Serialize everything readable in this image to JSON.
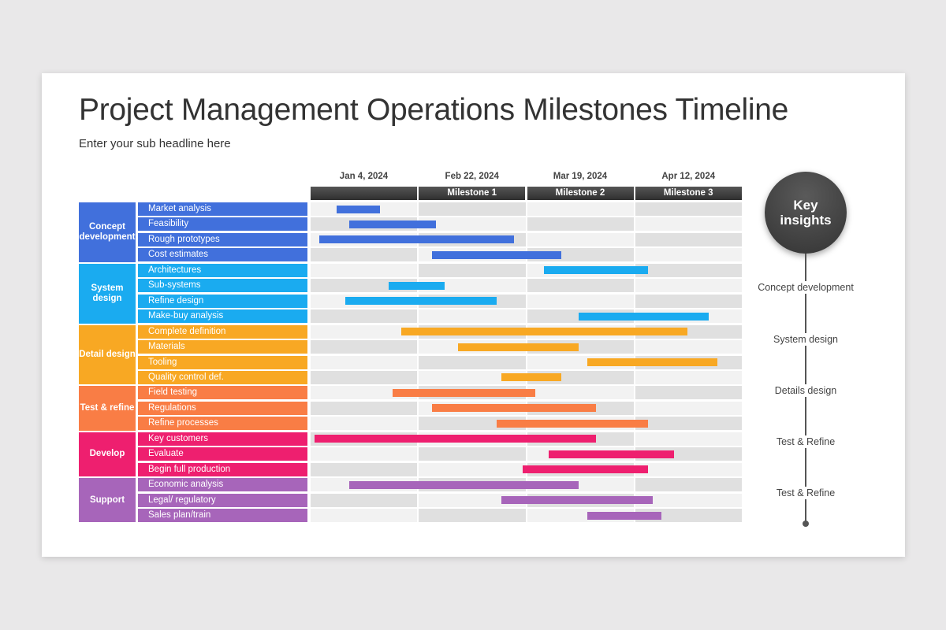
{
  "title": "Project Management Operations Milestones Timeline",
  "subtitle": "Enter your sub headline here",
  "chart_data": {
    "type": "gantt",
    "columns": [
      {
        "date": "Jan 4, 2024",
        "milestone": ""
      },
      {
        "date": "Feb 22, 2024",
        "milestone": "Milestone 1"
      },
      {
        "date": "Mar 19, 2024",
        "milestone": "Milestone 2"
      },
      {
        "date": "Apr 12, 2024",
        "milestone": "Milestone 3"
      }
    ],
    "timeline_note": "bar start/end given as fraction of full timeline span (0 = start, 1 = end)",
    "groups": [
      {
        "name": "Concept development",
        "color": "#4170dc",
        "tasks": [
          {
            "name": "Market analysis",
            "start": 0.06,
            "end": 0.16
          },
          {
            "name": "Feasibility",
            "start": 0.09,
            "end": 0.29
          },
          {
            "name": "Rough prototypes",
            "start": 0.02,
            "end": 0.47
          },
          {
            "name": "Cost estimates",
            "start": 0.28,
            "end": 0.58
          }
        ]
      },
      {
        "name": "System design",
        "color": "#1aabf0",
        "tasks": [
          {
            "name": "Architectures",
            "start": 0.54,
            "end": 0.78
          },
          {
            "name": "Sub-systems",
            "start": 0.18,
            "end": 0.31
          },
          {
            "name": "Refine design",
            "start": 0.08,
            "end": 0.43
          },
          {
            "name": "Make-buy analysis",
            "start": 0.62,
            "end": 0.92
          }
        ]
      },
      {
        "name": "Detail design",
        "color": "#f8a823",
        "tasks": [
          {
            "name": "Complete definition",
            "start": 0.21,
            "end": 0.87
          },
          {
            "name": "Materials",
            "start": 0.34,
            "end": 0.62
          },
          {
            "name": "Tooling",
            "start": 0.64,
            "end": 0.94
          },
          {
            "name": "Quality control def.",
            "start": 0.44,
            "end": 0.58
          }
        ]
      },
      {
        "name": "Test & refine",
        "color": "#f97d45",
        "tasks": [
          {
            "name": "Field testing",
            "start": 0.19,
            "end": 0.52
          },
          {
            "name": "Regulations",
            "start": 0.28,
            "end": 0.66
          },
          {
            "name": "Refine processes",
            "start": 0.43,
            "end": 0.78
          }
        ]
      },
      {
        "name": "Develop",
        "color": "#ee1f6f",
        "tasks": [
          {
            "name": "Key customers",
            "start": 0.01,
            "end": 0.66
          },
          {
            "name": "Evaluate",
            "start": 0.55,
            "end": 0.84
          },
          {
            "name": "Begin full production",
            "start": 0.49,
            "end": 0.78
          }
        ]
      },
      {
        "name": "Support",
        "color": "#a765ba",
        "tasks": [
          {
            "name": "Economic analysis",
            "start": 0.09,
            "end": 0.62
          },
          {
            "name": "Legal/ regulatory",
            "start": 0.44,
            "end": 0.79
          },
          {
            "name": "Sales plan/train",
            "start": 0.64,
            "end": 0.81
          }
        ]
      }
    ]
  },
  "insights": {
    "heading": "Key insights",
    "items": [
      "Concept development",
      "System design",
      "Details design",
      "Test & Refine",
      "Test & Refine"
    ]
  }
}
